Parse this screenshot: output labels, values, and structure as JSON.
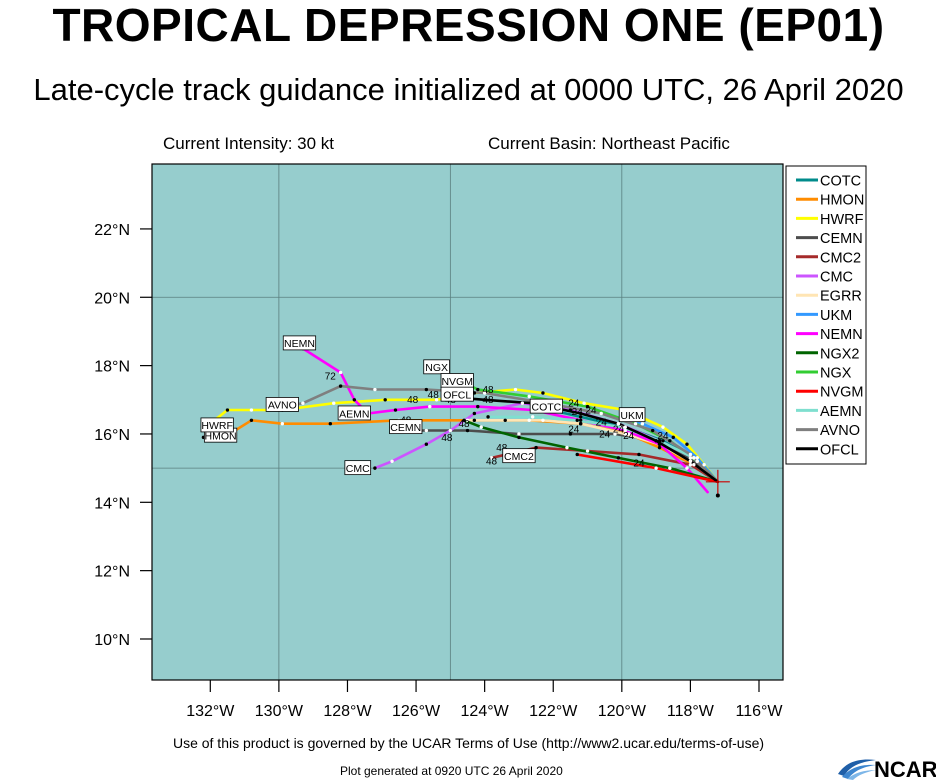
{
  "page": {
    "title": "TROPICAL DEPRESSION ONE (EP01)",
    "subtitle": "Late-cycle track guidance initialized at 0000 UTC, 26 April 2020",
    "current_intensity": "Current Intensity: 30 kt",
    "current_basin": "Current Basin: Northeast Pacific",
    "terms": "Use of this product is governed by the UCAR Terms of Use (http://www2.ucar.edu/terms-of-use)",
    "generated": "Plot generated at 0920 UTC   26 April 2020",
    "logo_text": "NCAR"
  },
  "chart_data": {
    "type": "line",
    "title": "TROPICAL DEPRESSION ONE (EP01)",
    "subtitle": "Late-cycle track guidance initialized at 0000 UTC, 26 April 2020",
    "xlim": [
      -133.7,
      -115.3
    ],
    "ylim": [
      8.8,
      23.9
    ],
    "x_ticks": [
      {
        "v": -132,
        "label": "132°W"
      },
      {
        "v": -130,
        "label": "130°W"
      },
      {
        "v": -128,
        "label": "128°W"
      },
      {
        "v": -126,
        "label": "126°W"
      },
      {
        "v": -124,
        "label": "124°W"
      },
      {
        "v": -122,
        "label": "122°W"
      },
      {
        "v": -120,
        "label": "120°W"
      },
      {
        "v": -118,
        "label": "118°W"
      },
      {
        "v": -116,
        "label": "116°W"
      }
    ],
    "y_ticks": [
      {
        "v": 10,
        "label": "10°N"
      },
      {
        "v": 12,
        "label": "12°N"
      },
      {
        "v": 14,
        "label": "14°N"
      },
      {
        "v": 16,
        "label": "16°N"
      },
      {
        "v": 18,
        "label": "18°N"
      },
      {
        "v": 20,
        "label": "20°N"
      },
      {
        "v": 22,
        "label": "22°N"
      }
    ],
    "grid_x": [
      -130,
      -125,
      -120
    ],
    "grid_y": [
      15,
      20
    ],
    "grid": true,
    "legend_position": "right",
    "background_color": "#96cdcd",
    "current_position": [
      -117.2,
      14.6
    ],
    "series": [
      {
        "name": "COTC",
        "color": "#008b8b",
        "label": "COTC",
        "label_pos": [
          -122.2,
          16.8
        ],
        "points": [
          [
            -117.2,
            14.6
          ],
          [
            -117.8,
            15.2
          ],
          [
            -118.8,
            15.8
          ],
          [
            -119.9,
            16.2
          ],
          [
            -121.2,
            16.5
          ],
          [
            -122.5,
            16.8
          ]
        ]
      },
      {
        "name": "HMON",
        "color": "#ff8c00",
        "label": "HMON",
        "label_pos": [
          -131.7,
          15.95
        ],
        "points": [
          [
            -117.2,
            14.6
          ],
          [
            -117.9,
            15.1
          ],
          [
            -118.9,
            15.6
          ],
          [
            -119.8,
            16.0
          ],
          [
            -121.2,
            16.3
          ],
          [
            -122.7,
            16.4
          ],
          [
            -124.3,
            16.4
          ],
          [
            -126.5,
            16.4
          ],
          [
            -128.5,
            16.3
          ],
          [
            -129.9,
            16.3
          ],
          [
            -130.8,
            16.4
          ],
          [
            -131.6,
            15.9
          ],
          [
            -132.2,
            15.9
          ]
        ]
      },
      {
        "name": "HWRF",
        "color": "#ffff00",
        "label": "HWRF",
        "label_pos": [
          -131.8,
          16.25
        ],
        "points": [
          [
            -117.2,
            14.6
          ],
          [
            -117.6,
            15.1
          ],
          [
            -118.1,
            15.7
          ],
          [
            -118.8,
            16.2
          ],
          [
            -119.9,
            16.7
          ],
          [
            -121.1,
            16.9
          ],
          [
            -122.3,
            17.2
          ],
          [
            -123.1,
            17.3
          ],
          [
            -124.3,
            17.2
          ],
          [
            -125.4,
            17.0
          ],
          [
            -126.9,
            17.0
          ],
          [
            -128.4,
            16.9
          ],
          [
            -129.9,
            16.7
          ],
          [
            -130.8,
            16.7
          ],
          [
            -131.5,
            16.7
          ],
          [
            -132.0,
            16.3
          ]
        ]
      },
      {
        "name": "CEMN",
        "color": "#4d4d4d",
        "label": "CEMN",
        "label_pos": [
          -126.3,
          16.2
        ],
        "points": [
          [
            -117.2,
            14.6
          ],
          [
            -118.0,
            15.3
          ],
          [
            -119.0,
            15.8
          ],
          [
            -120.2,
            16.0
          ],
          [
            -121.5,
            16.0
          ],
          [
            -123.0,
            16.0
          ],
          [
            -124.5,
            16.1
          ],
          [
            -125.7,
            16.1
          ],
          [
            -126.5,
            16.1
          ]
        ]
      },
      {
        "name": "CMC2",
        "color": "#a52a2a",
        "label": "CMC2",
        "label_pos": [
          -123.0,
          15.35
        ],
        "points": [
          [
            -117.2,
            14.6
          ],
          [
            -118.0,
            15.1
          ],
          [
            -119.5,
            15.4
          ],
          [
            -121.0,
            15.5
          ],
          [
            -122.5,
            15.6
          ],
          [
            -123.8,
            15.3
          ]
        ]
      },
      {
        "name": "CMC",
        "color": "#cc55ff",
        "label": "CMC",
        "label_pos": [
          -127.7,
          15.0
        ],
        "points": [
          [
            -117.2,
            14.6
          ],
          [
            -117.9,
            15.3
          ],
          [
            -118.9,
            15.8
          ],
          [
            -120.1,
            16.3
          ],
          [
            -121.5,
            16.7
          ],
          [
            -122.9,
            16.9
          ],
          [
            -124.3,
            16.6
          ],
          [
            -125.0,
            16.1
          ],
          [
            -125.7,
            15.7
          ],
          [
            -126.7,
            15.2
          ],
          [
            -127.2,
            15.0
          ]
        ]
      },
      {
        "name": "EGRR",
        "color": "#ffe5b4",
        "label": "",
        "label_pos": null,
        "points": [
          [
            -117.2,
            14.6
          ],
          [
            -118.0,
            15.2
          ],
          [
            -118.9,
            15.7
          ],
          [
            -119.9,
            16.0
          ],
          [
            -121.2,
            16.3
          ],
          [
            -122.3,
            16.4
          ],
          [
            -123.4,
            16.4
          ],
          [
            -124.5,
            16.4
          ]
        ]
      },
      {
        "name": "UKM",
        "color": "#3399ff",
        "label": "UKM",
        "label_pos": [
          -119.7,
          16.55
        ],
        "points": [
          [
            -117.2,
            14.6
          ],
          [
            -117.8,
            15.3
          ],
          [
            -118.5,
            15.9
          ],
          [
            -119.4,
            16.3
          ],
          [
            -120.0,
            16.5
          ]
        ]
      },
      {
        "name": "NEMN",
        "color": "#ff00ff",
        "label": "NEMN",
        "label_pos": [
          -129.4,
          18.65
        ],
        "points": [
          [
            -117.5,
            14.3
          ],
          [
            -118.1,
            15.0
          ],
          [
            -118.9,
            15.7
          ],
          [
            -119.9,
            16.1
          ],
          [
            -121.2,
            16.4
          ],
          [
            -122.6,
            16.7
          ],
          [
            -124.2,
            16.8
          ],
          [
            -125.6,
            16.8
          ],
          [
            -126.6,
            16.7
          ],
          [
            -127.4,
            16.6
          ],
          [
            -127.8,
            17.0
          ],
          [
            -128.2,
            17.8
          ],
          [
            -129.3,
            18.5
          ]
        ]
      },
      {
        "name": "NGX2",
        "color": "#006400",
        "label": "",
        "label_pos": null,
        "points": [
          [
            -117.2,
            14.6
          ],
          [
            -118.6,
            15.0
          ],
          [
            -120.1,
            15.3
          ],
          [
            -121.6,
            15.6
          ],
          [
            -123.0,
            15.9
          ],
          [
            -124.1,
            16.2
          ],
          [
            -124.6,
            16.4
          ]
        ]
      },
      {
        "name": "NGX",
        "color": "#32cd32",
        "label": "NGX",
        "label_pos": [
          -125.4,
          17.95
        ],
        "points": [
          [
            -117.2,
            14.6
          ],
          [
            -117.8,
            15.2
          ],
          [
            -118.6,
            15.8
          ],
          [
            -119.6,
            16.3
          ],
          [
            -121.0,
            16.8
          ],
          [
            -122.7,
            17.1
          ],
          [
            -124.2,
            17.3
          ],
          [
            -125.0,
            17.7
          ]
        ]
      },
      {
        "name": "NVGM",
        "color": "#ff0000",
        "label": "NVGM",
        "label_pos": [
          -124.8,
          17.55
        ],
        "points": [
          [
            -117.2,
            14.6
          ],
          [
            -119.0,
            15.0
          ],
          [
            -121.3,
            15.4
          ]
        ]
      },
      {
        "name": "AEMN",
        "color": "#7fdfcf",
        "label": "AEMN",
        "label_pos": [
          -127.8,
          16.6
        ],
        "points": [
          [
            -117.2,
            14.6
          ],
          [
            -117.9,
            15.3
          ],
          [
            -118.9,
            15.8
          ],
          [
            -120.0,
            16.2
          ],
          [
            -121.3,
            16.4
          ],
          [
            -122.6,
            16.5
          ],
          [
            -123.9,
            16.5
          ]
        ]
      },
      {
        "name": "AVNO",
        "color": "#7f7f7f",
        "label": "AVNO",
        "label_pos": [
          -129.9,
          16.85
        ],
        "points": [
          [
            -117.2,
            14.6
          ],
          [
            -118.0,
            15.4
          ],
          [
            -119.1,
            16.1
          ],
          [
            -120.6,
            16.6
          ],
          [
            -122.2,
            16.9
          ],
          [
            -124.0,
            17.2
          ],
          [
            -125.7,
            17.3
          ],
          [
            -127.2,
            17.3
          ],
          [
            -128.2,
            17.4
          ],
          [
            -129.3,
            16.9
          ],
          [
            -129.9,
            16.8
          ]
        ]
      },
      {
        "name": "OFCL",
        "color": "#000000",
        "label": "OFCL",
        "label_pos": [
          -124.8,
          17.15
        ],
        "points": [
          [
            -117.2,
            14.6
          ],
          [
            -118.0,
            15.2
          ],
          [
            -119.0,
            15.8
          ],
          [
            -120.1,
            16.3
          ],
          [
            -121.2,
            16.6
          ],
          [
            -122.6,
            16.9
          ],
          [
            -124.0,
            17.0
          ],
          [
            -125.2,
            17.1
          ]
        ]
      }
    ],
    "hour_labels": [
      {
        "text": "72",
        "pos": [
          -128.5,
          17.6
        ]
      },
      {
        "text": "48",
        "pos": [
          -126.1,
          16.9
        ]
      },
      {
        "text": "48",
        "pos": [
          -125.5,
          17.05
        ]
      },
      {
        "text": "48",
        "pos": [
          -125.0,
          16.9
        ]
      },
      {
        "text": "48",
        "pos": [
          -123.9,
          17.2
        ]
      },
      {
        "text": "48",
        "pos": [
          -123.9,
          16.9
        ]
      },
      {
        "text": "48",
        "pos": [
          -126.3,
          16.3
        ]
      },
      {
        "text": "48",
        "pos": [
          -124.6,
          16.2
        ]
      },
      {
        "text": "48",
        "pos": [
          -125.1,
          15.8
        ]
      },
      {
        "text": "48",
        "pos": [
          -123.5,
          15.5
        ]
      },
      {
        "text": "48",
        "pos": [
          -123.8,
          15.1
        ]
      },
      {
        "text": "24",
        "pos": [
          -121.4,
          16.8
        ]
      },
      {
        "text": "24",
        "pos": [
          -121.3,
          16.55
        ]
      },
      {
        "text": "24",
        "pos": [
          -120.9,
          16.6
        ]
      },
      {
        "text": "24",
        "pos": [
          -121.4,
          16.05
        ]
      },
      {
        "text": "24",
        "pos": [
          -120.6,
          16.25
        ]
      },
      {
        "text": "24",
        "pos": [
          -120.5,
          15.9
        ]
      },
      {
        "text": "24",
        "pos": [
          -120.1,
          16.05
        ]
      },
      {
        "text": "24",
        "pos": [
          -119.8,
          15.85
        ]
      },
      {
        "text": "24",
        "pos": [
          -118.8,
          15.85
        ]
      },
      {
        "text": "24",
        "pos": [
          -119.5,
          15.05
        ]
      }
    ]
  }
}
